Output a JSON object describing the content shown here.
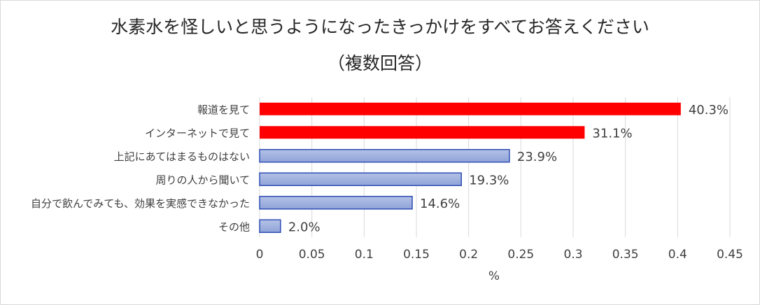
{
  "chart_data": {
    "type": "bar",
    "orientation": "horizontal",
    "title": "水素水を怪しいと思うようになったきっかけをすべてお答えください",
    "subtitle": "（複数回答）",
    "xlabel": "%",
    "ylabel": "",
    "xlim": [
      0,
      0.45
    ],
    "x_ticks": [
      0,
      0.05,
      0.1,
      0.15,
      0.2,
      0.25,
      0.3,
      0.35,
      0.4,
      0.45
    ],
    "x_tick_labels": [
      "0",
      "0.05",
      "0.1",
      "0.15",
      "0.2",
      "0.25",
      "0.3",
      "0.35",
      "0.4",
      "0.45"
    ],
    "grid": "vertical",
    "categories": [
      "報道を見て",
      "インターネットで見て",
      "上記にあてはまるものはない",
      "周りの人から聞いて",
      "自分で飲んでみても、効果を実感できなかった",
      "その他"
    ],
    "values": [
      0.403,
      0.311,
      0.239,
      0.193,
      0.146,
      0.02
    ],
    "data_labels": [
      "40.3%",
      "31.1%",
      "23.9%",
      "19.3%",
      "14.6%",
      "2.0%"
    ],
    "bar_styles": [
      "highlight",
      "highlight",
      "normal",
      "normal",
      "normal",
      "normal"
    ],
    "colors": {
      "highlight_fill": "#ff0000",
      "normal_fill_top": "#b4c2e6",
      "normal_fill_bottom": "#8fa3d9",
      "normal_border": "#2f4eb4",
      "grid": "#d9d9d9",
      "text": "#404040"
    }
  }
}
